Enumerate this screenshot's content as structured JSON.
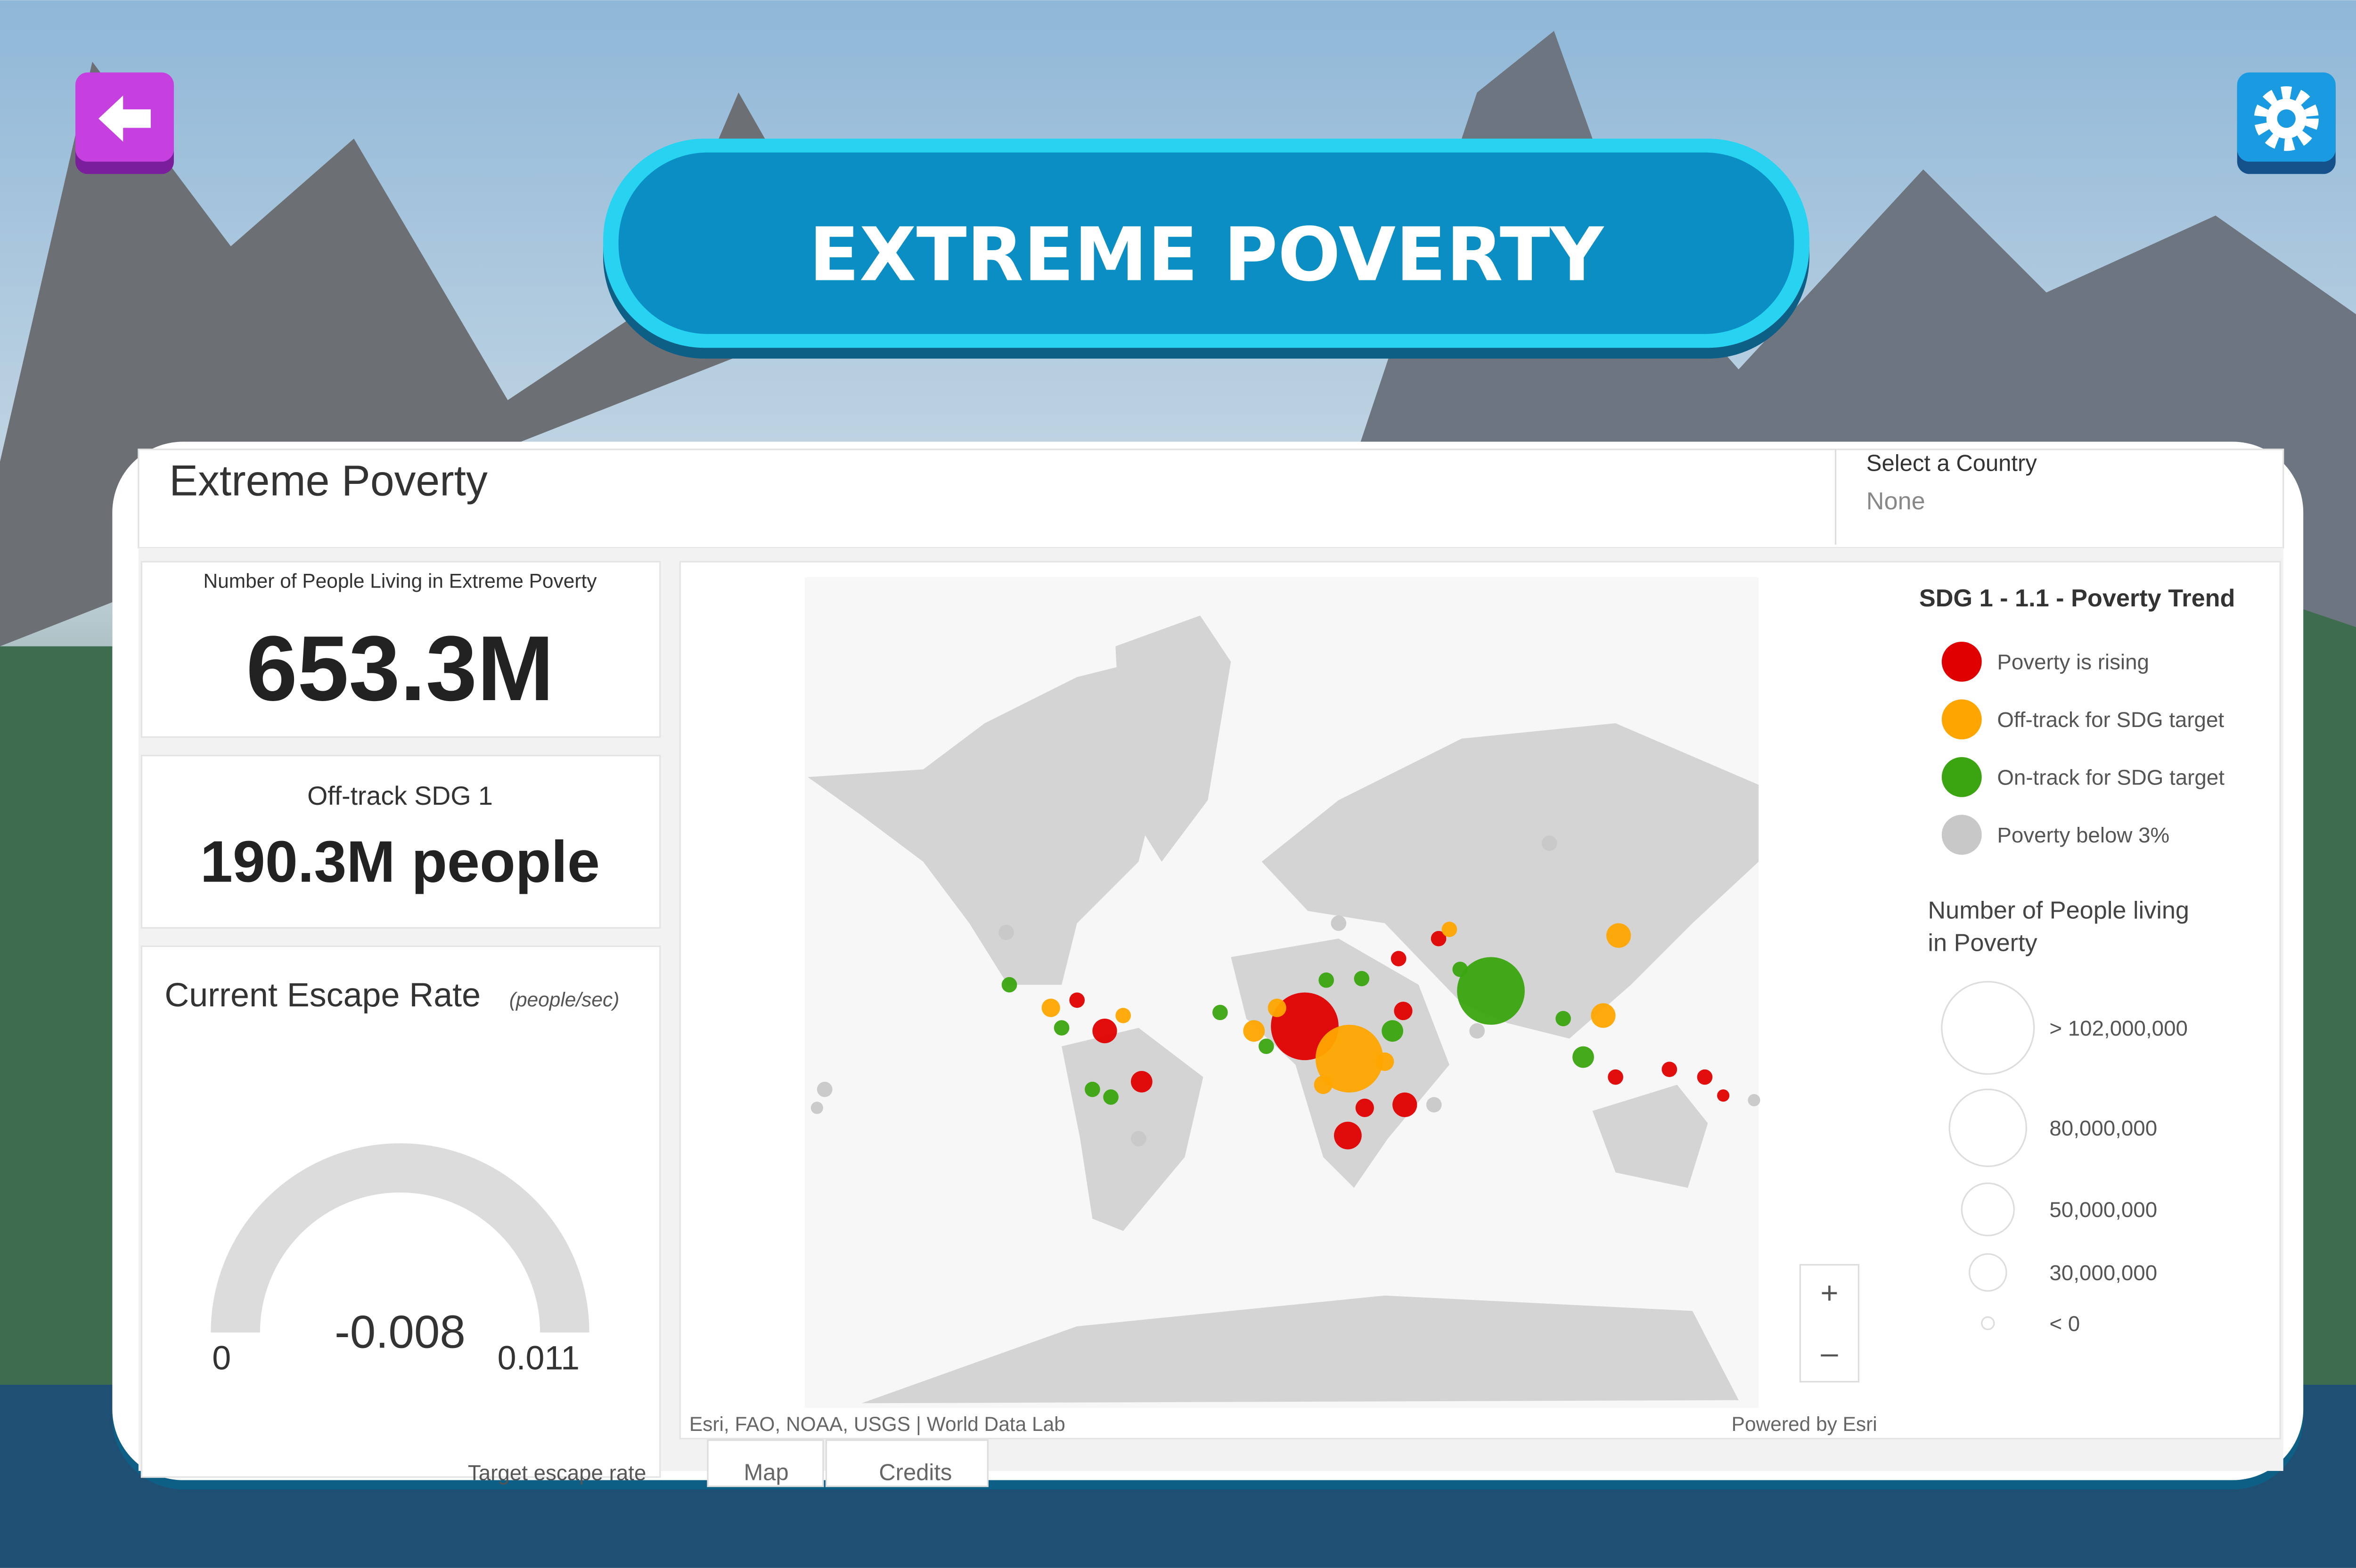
{
  "header": {
    "title": "EXTREME POVERTY"
  },
  "dashboard": {
    "title": "Extreme Poverty",
    "selector": {
      "label": "Select a Country",
      "value": "None"
    },
    "indicators": [
      {
        "label": "Number of People Living in Extreme Poverty",
        "value": "653.3M"
      },
      {
        "label": "Off-track SDG 1",
        "value": "190.3M people"
      }
    ],
    "gauge": {
      "title": "Current Escape Rate",
      "unit": "(people/sec)",
      "min": "0",
      "value": "-0.008",
      "max": "0.011",
      "footer": "Target escape rate"
    },
    "map": {
      "attribution": "Esri, FAO, NOAA, USGS | World Data Lab",
      "powered": "Powered by Esri",
      "zoom_in": "+",
      "zoom_out": "–"
    },
    "legend": {
      "title": "SDG 1 - 1.1 - Poverty Trend",
      "trend": [
        {
          "label": "Poverty is rising",
          "color": "#e00000"
        },
        {
          "label": "Off-track for SDG target",
          "color": "#ffa500"
        },
        {
          "label": "On-track for SDG target",
          "color": "#3aa510"
        },
        {
          "label": "Poverty below 3%",
          "color": "#c8c8c8"
        }
      ],
      "size_title": "Number of People living in Poverty",
      "sizes": [
        "> 102,000,000",
        "80,000,000",
        "50,000,000",
        "30,000,000",
        "< 0"
      ]
    },
    "tabs": [
      "Map",
      "Credits"
    ]
  }
}
